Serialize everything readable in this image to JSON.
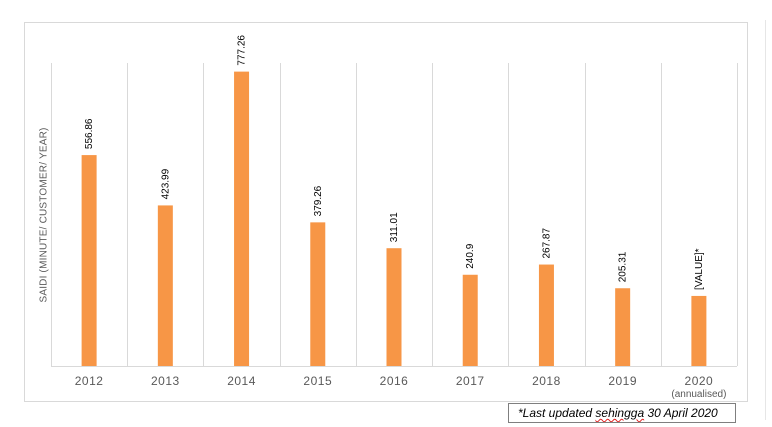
{
  "chart_data": {
    "type": "bar",
    "title": "",
    "ylabel": "SAIDI (MINUTE/ CUSTOMER/ YEAR)",
    "xlabel": "",
    "categories": [
      "2012",
      "2013",
      "2014",
      "2015",
      "2016",
      "2017",
      "2018",
      "2019",
      "2020"
    ],
    "category_sublabels": [
      "",
      "",
      "",
      "",
      "",
      "",
      "",
      "",
      "(annualised)"
    ],
    "values": [
      556.86,
      423.99,
      777.26,
      379.26,
      311.01,
      240.9,
      267.87,
      205.31,
      185
    ],
    "data_labels": [
      "556.86",
      "423.99",
      "777.26",
      "379.26",
      "311.01",
      "240.9",
      "267.87",
      "205.31",
      "[VALUE]*"
    ],
    "ylim": [
      0,
      800
    ],
    "grid": "vertical",
    "bar_color": "#f79646",
    "grid_color": "#d9d9d9",
    "label_color": "#595959"
  },
  "note": {
    "prefix": "*Last updated ",
    "underlined": "sehingga",
    "suffix": " 30 April 2020"
  }
}
